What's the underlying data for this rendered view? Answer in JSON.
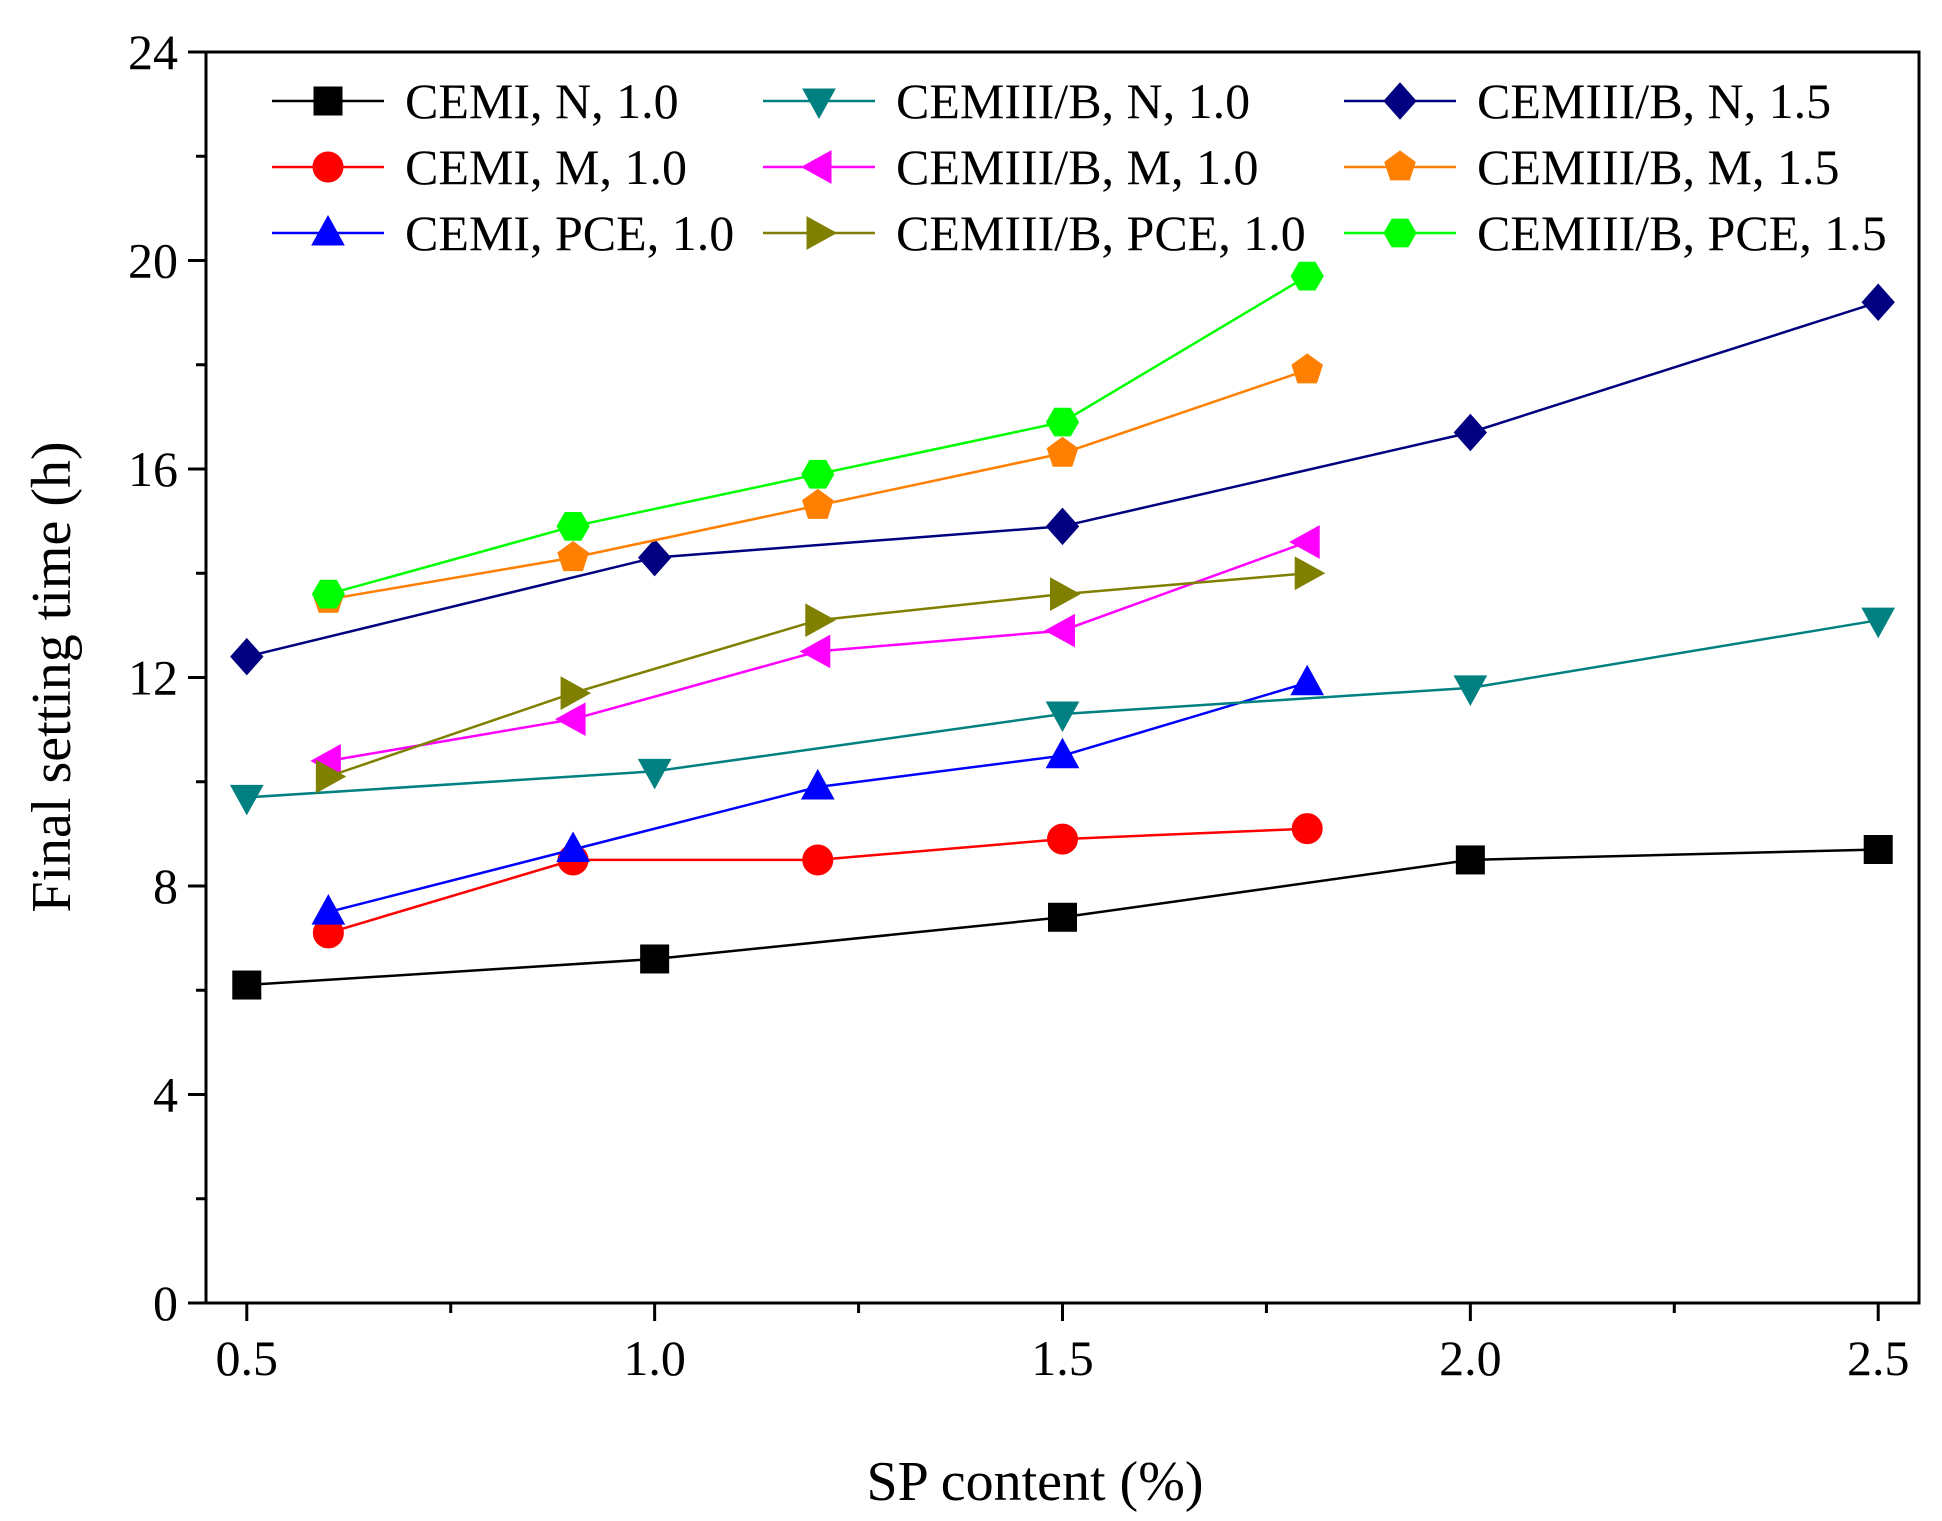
{
  "chart_data": {
    "type": "line",
    "title": "",
    "xlabel": "SP content (%)",
    "ylabel": "Final setting time (h)",
    "xlim": [
      0.45,
      2.55
    ],
    "ylim": [
      0,
      24
    ],
    "xticks": [
      0.5,
      1.0,
      1.5,
      2.0,
      2.5
    ],
    "xtick_labels": [
      "0.5",
      "1.0",
      "1.5",
      "2.0",
      "2.5"
    ],
    "yticks": [
      0,
      4,
      8,
      12,
      16,
      20,
      24
    ],
    "ytick_labels": [
      "0",
      "4",
      "8",
      "12",
      "16",
      "20",
      "24"
    ],
    "grid": false,
    "legend_position": "top",
    "series": [
      {
        "name": "CEMI, N, 1.0",
        "color": "#000000",
        "marker": "square",
        "x": [
          0.5,
          1.0,
          1.5,
          2.0,
          2.5
        ],
        "y": [
          6.1,
          6.6,
          7.4,
          8.5,
          8.7
        ]
      },
      {
        "name": "CEMI, M, 1.0",
        "color": "#ff0000",
        "marker": "circle",
        "x": [
          0.6,
          0.9,
          1.2,
          1.5,
          1.8
        ],
        "y": [
          7.1,
          8.5,
          8.5,
          8.9,
          9.1
        ]
      },
      {
        "name": "CEMI, PCE, 1.0",
        "color": "#0000ff",
        "marker": "triangle-up",
        "x": [
          0.6,
          0.9,
          1.2,
          1.5,
          1.8
        ],
        "y": [
          7.5,
          8.7,
          9.9,
          10.5,
          11.9
        ]
      },
      {
        "name": "CEMIII/B, N, 1.0",
        "color": "#008080",
        "marker": "triangle-down",
        "x": [
          0.5,
          1.0,
          1.5,
          2.0,
          2.5
        ],
        "y": [
          9.7,
          10.2,
          11.3,
          11.8,
          13.1
        ]
      },
      {
        "name": "CEMIII/B, M, 1.0",
        "color": "#ff00ff",
        "marker": "triangle-left",
        "x": [
          0.6,
          0.9,
          1.2,
          1.5,
          1.8
        ],
        "y": [
          10.4,
          11.2,
          12.5,
          12.9,
          14.6
        ]
      },
      {
        "name": "CEMIII/B, PCE, 1.0",
        "color": "#808000",
        "marker": "triangle-right",
        "x": [
          0.6,
          0.9,
          1.2,
          1.5,
          1.8
        ],
        "y": [
          10.1,
          11.7,
          13.1,
          13.6,
          14.0
        ]
      },
      {
        "name": "CEMIII/B, N, 1.5",
        "color": "#000080",
        "marker": "diamond",
        "x": [
          0.5,
          1.0,
          1.5,
          2.0,
          2.5
        ],
        "y": [
          12.4,
          14.3,
          14.9,
          16.7,
          19.2
        ]
      },
      {
        "name": "CEMIII/B, M, 1.5",
        "color": "#ff8000",
        "marker": "pentagon",
        "x": [
          0.6,
          0.9,
          1.2,
          1.5,
          1.8
        ],
        "y": [
          13.5,
          14.3,
          15.3,
          16.3,
          17.9
        ]
      },
      {
        "name": "CEMIII/B, PCE, 1.5",
        "color": "#00ff00",
        "marker": "hexagon",
        "x": [
          0.6,
          0.9,
          1.2,
          1.5,
          1.8
        ],
        "y": [
          13.6,
          14.9,
          15.9,
          16.9,
          19.7
        ]
      }
    ]
  }
}
